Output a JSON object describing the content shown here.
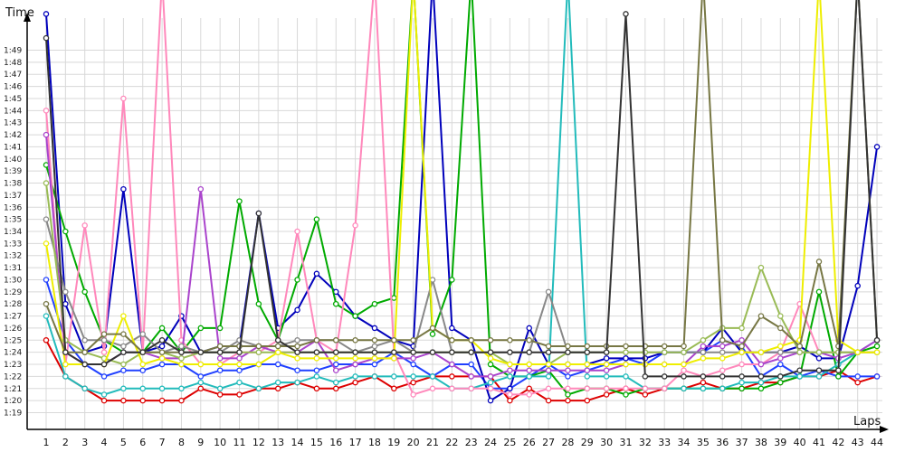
{
  "chart_data": {
    "type": "line",
    "ylabel": "Time",
    "xlabel": "Laps",
    "x": [
      1,
      2,
      3,
      4,
      5,
      6,
      7,
      8,
      9,
      10,
      11,
      12,
      13,
      14,
      15,
      16,
      17,
      18,
      19,
      20,
      21,
      22,
      23,
      24,
      25,
      26,
      27,
      28,
      29,
      30,
      31,
      32,
      33,
      34,
      35,
      36,
      37,
      38,
      39,
      40,
      41,
      42,
      43,
      44
    ],
    "yticks": [
      "1:19",
      "1:20",
      "1:21",
      "1:22",
      "1:23",
      "1:24",
      "1:25",
      "1:26",
      "1:27",
      "1:28",
      "1:29",
      "1:30",
      "1:31",
      "1:32",
      "1:33",
      "1:34",
      "1:35",
      "1:36",
      "1:37",
      "1:38",
      "1:39",
      "1:40",
      "1:41",
      "1:42",
      "1:43",
      "1:44",
      "1:45",
      "1:46",
      "1:47",
      "1:48",
      "1:49"
    ],
    "ylim": [
      78,
      110
    ],
    "grid": true,
    "series": [
      {
        "color": "#dd0000",
        "values": [
          85,
          82,
          81,
          80,
          80,
          80,
          80,
          80,
          81,
          80.5,
          80.5,
          81,
          81,
          81.5,
          81,
          81,
          81.5,
          82,
          81,
          81.5,
          82,
          82,
          82,
          82,
          80,
          81,
          80,
          80,
          80,
          80.5,
          81,
          80.5,
          81,
          81,
          81.5,
          81,
          81,
          81.5,
          81.5,
          82,
          82,
          82.5,
          81.5,
          82
        ]
      },
      {
        "color": "#2040ff",
        "values": [
          90,
          85,
          83,
          82,
          82.5,
          82.5,
          83,
          83,
          82,
          82.5,
          82.5,
          83,
          83,
          82.5,
          82.5,
          83,
          83,
          83,
          84,
          83,
          82,
          83,
          83,
          81,
          81,
          82,
          83,
          82,
          82.5,
          83,
          83.5,
          83,
          84,
          84,
          84,
          85,
          84.5,
          82,
          83,
          82,
          82.5,
          82,
          82,
          82
        ]
      },
      {
        "color": "#0000bb",
        "values": [
          112,
          88,
          84,
          84.5,
          97.5,
          84,
          84.5,
          87,
          84,
          84.5,
          84.5,
          95.5,
          86,
          87.5,
          90.5,
          89,
          87,
          86,
          85,
          84.5,
          115,
          86,
          85,
          80,
          81,
          86,
          83,
          83,
          83,
          83.5,
          83.5,
          83.5,
          84,
          84,
          84,
          86,
          84,
          84,
          84,
          84.5,
          83.5,
          83.5,
          89.5,
          101
        ]
      },
      {
        "color": "#00aa00",
        "values": [
          99.5,
          94,
          89,
          85,
          84,
          84,
          86,
          84,
          86,
          86,
          96.5,
          88,
          85,
          90,
          95,
          88,
          87,
          88,
          88.5,
          115,
          85.5,
          90,
          115,
          83,
          82,
          82,
          82.5,
          80.5,
          81,
          81,
          80.5,
          81,
          81,
          81,
          81,
          81,
          81,
          81,
          81.5,
          82,
          89,
          82,
          84,
          84.5
        ]
      },
      {
        "color": "#22bbbb",
        "values": [
          87,
          82,
          81,
          80.5,
          81,
          81,
          81,
          81,
          81.5,
          81,
          81.5,
          81,
          81.5,
          81.5,
          82,
          81.5,
          82,
          82,
          82,
          82,
          82,
          81,
          81,
          81.5,
          82,
          82,
          82,
          115,
          82,
          82,
          82,
          81,
          81,
          81,
          81,
          81,
          81.5,
          81.5,
          82,
          82,
          82,
          83,
          84,
          85
        ]
      },
      {
        "color": "#ff88bb",
        "values": [
          104,
          83,
          94.5,
          84,
          105,
          84,
          115,
          85,
          83,
          83,
          84,
          84,
          85,
          94,
          85,
          84,
          94.5,
          115,
          84,
          80.5,
          81,
          81,
          81,
          81,
          80.5,
          80.5,
          81,
          81,
          81,
          81,
          81,
          81,
          81,
          82.5,
          82,
          82.5,
          83,
          83,
          84,
          88,
          84,
          84,
          84,
          84
        ]
      },
      {
        "color": "#aa44cc",
        "values": [
          102,
          84,
          83,
          83,
          84,
          84,
          83.5,
          83.5,
          97.5,
          83.5,
          83.5,
          84.5,
          84,
          84,
          85,
          82.5,
          83,
          83.5,
          83.5,
          83.5,
          84,
          83,
          82,
          82,
          82.5,
          82.5,
          82.5,
          82.5,
          82.5,
          82.5,
          83,
          83,
          83,
          83,
          84.5,
          84.5,
          85,
          83,
          83.5,
          84,
          84,
          83.5,
          84,
          85
        ]
      },
      {
        "color": "#888888",
        "values": [
          95,
          89,
          85,
          85,
          84.5,
          85.5,
          84,
          84.5,
          84,
          84,
          85,
          84.5,
          84.5,
          85,
          85,
          85,
          84,
          84.5,
          85,
          84,
          90,
          84,
          84,
          84,
          84,
          84,
          89,
          84,
          84,
          84,
          84,
          84,
          84,
          84,
          84,
          84,
          84,
          84,
          84,
          84,
          84,
          84,
          84,
          84
        ]
      },
      {
        "color": "#99bb55",
        "values": [
          98,
          85,
          84,
          83.5,
          83,
          84,
          84,
          83.5,
          84,
          84,
          84,
          84,
          84,
          84,
          84,
          84,
          84,
          84,
          84,
          84,
          84,
          84,
          84,
          84,
          83,
          83,
          83,
          84,
          84,
          84,
          84,
          84,
          84,
          84,
          85,
          86,
          86,
          91,
          87,
          84,
          84,
          84,
          84,
          84
        ]
      },
      {
        "color": "#eeee00",
        "values": [
          93,
          83,
          83,
          83,
          87,
          83,
          83.5,
          83,
          83,
          83,
          83,
          83,
          84,
          83.5,
          83.5,
          83.5,
          83.5,
          83.5,
          83.5,
          115,
          86,
          85,
          85,
          83.5,
          83,
          83,
          83,
          83,
          83,
          83,
          83,
          83,
          83,
          83,
          83.5,
          83.5,
          84,
          84,
          84.5,
          85,
          115,
          85,
          84,
          84
        ]
      },
      {
        "color": "#777744",
        "values": [
          88,
          84,
          84,
          85.5,
          85.5,
          84,
          84,
          84,
          84,
          84.5,
          84.5,
          84.5,
          84.5,
          84.5,
          85,
          85,
          85,
          85,
          85,
          85,
          86,
          85,
          85,
          85,
          85,
          85,
          84.5,
          84.5,
          84.5,
          84.5,
          84.5,
          84.5,
          84.5,
          84.5,
          115,
          85,
          84.5,
          87,
          86,
          84.5,
          91.5,
          84.5,
          115,
          85
        ]
      },
      {
        "color": "#333333",
        "values": [
          110,
          84,
          83,
          83,
          84,
          84,
          85,
          84,
          84,
          84,
          84,
          95.5,
          85,
          84,
          84,
          84,
          84,
          84,
          84,
          84,
          84,
          84,
          84,
          84,
          84,
          84,
          84,
          84,
          84,
          84,
          112,
          82,
          82,
          82,
          82,
          82,
          82,
          82,
          82,
          82.5,
          82.5,
          82.5,
          115,
          85
        ]
      }
    ]
  }
}
